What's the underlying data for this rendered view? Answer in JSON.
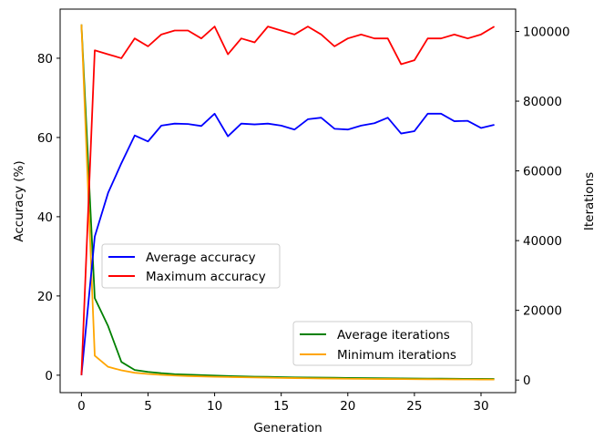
{
  "chart_data": {
    "type": "line",
    "xlabel": "Generation",
    "ylabel_left": "Accuracy (%)",
    "ylabel_right": "Iterations",
    "x_ticks": [
      0,
      5,
      10,
      15,
      20,
      25,
      30
    ],
    "y_left_ticks": [
      0,
      20,
      40,
      60,
      80
    ],
    "y_right_ticks": [
      0,
      20000,
      40000,
      60000,
      80000,
      100000
    ],
    "xlim": [
      -1.6,
      32.6
    ],
    "ylim_left": [
      -4.4,
      92.4
    ],
    "ylim_right": [
      -3600,
      106400
    ],
    "grid": false,
    "x": [
      0,
      1,
      2,
      3,
      4,
      5,
      6,
      7,
      8,
      9,
      10,
      11,
      12,
      13,
      14,
      15,
      16,
      17,
      18,
      19,
      20,
      21,
      22,
      23,
      24,
      25,
      26,
      27,
      28,
      29,
      30,
      31
    ],
    "series_left": [
      {
        "name": "Average accuracy",
        "color": "#0000ff",
        "values": [
          0,
          35,
          46,
          53.5,
          60.5,
          59,
          63,
          63.5,
          63.4,
          62.9,
          66,
          60.3,
          63.5,
          63.3,
          63.5,
          63,
          62,
          64.6,
          65,
          62.2,
          62,
          63,
          63.6,
          65,
          61,
          61.6,
          66,
          66,
          64.1,
          64.2,
          62.4,
          63.2
        ]
      },
      {
        "name": "Maximum accuracy",
        "color": "#ff0000",
        "values": [
          0,
          82,
          81,
          80,
          85,
          83,
          86,
          87,
          87,
          85,
          88,
          81,
          85,
          84,
          88,
          87,
          86,
          88,
          86,
          83,
          85,
          86,
          85,
          85,
          78.5,
          79.5,
          85,
          85,
          86,
          85,
          86,
          88
        ]
      }
    ],
    "series_right": [
      {
        "name": "Average iterations",
        "color": "#008000",
        "values": [
          102000,
          23500,
          15500,
          5200,
          2900,
          2350,
          1980,
          1700,
          1550,
          1420,
          1300,
          1150,
          1050,
          980,
          920,
          850,
          780,
          740,
          700,
          660,
          620,
          580,
          550,
          520,
          480,
          450,
          420,
          400,
          380,
          350,
          330,
          300
        ]
      },
      {
        "name": "Minimum iterations",
        "color": "#ffa500",
        "values": [
          102000,
          7000,
          3800,
          2800,
          2100,
          1750,
          1500,
          1300,
          1150,
          1050,
          950,
          870,
          800,
          750,
          690,
          620,
          560,
          510,
          470,
          430,
          390,
          350,
          320,
          300,
          280,
          260,
          240,
          220,
          200,
          180,
          170,
          150
        ]
      }
    ],
    "legend_left_placement": "center-left",
    "legend_right_placement": "lower-right"
  }
}
